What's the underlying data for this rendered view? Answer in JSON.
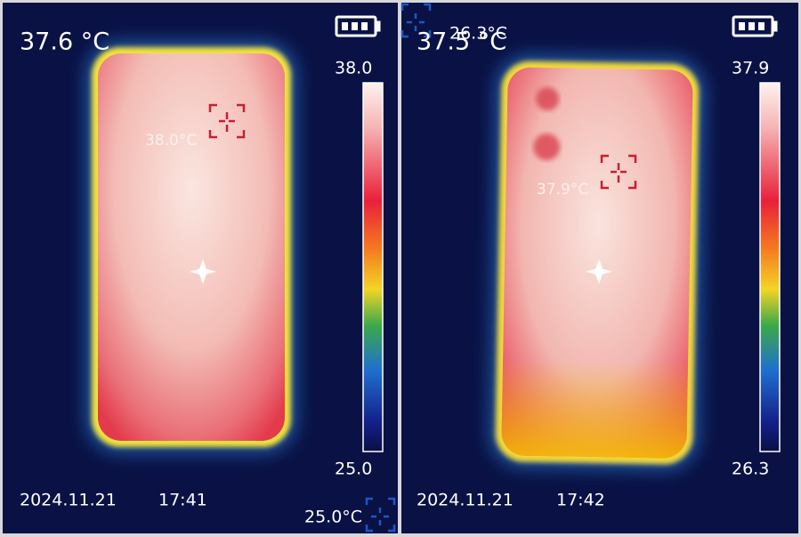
{
  "panels": [
    {
      "center_temp": "37.6 °C",
      "scale_max": "38.0",
      "scale_min": "25.0",
      "hot_label": "38.0°C",
      "cold_label": "25.0°C",
      "date": "2024.11.21",
      "time": "17:41"
    },
    {
      "center_temp": "37.5 °C",
      "scale_max": "37.9",
      "scale_min": "26.3",
      "hot_label": "37.9°C",
      "cold_label": "26.3°C",
      "date": "2024.11.21",
      "time": "17:42"
    }
  ]
}
